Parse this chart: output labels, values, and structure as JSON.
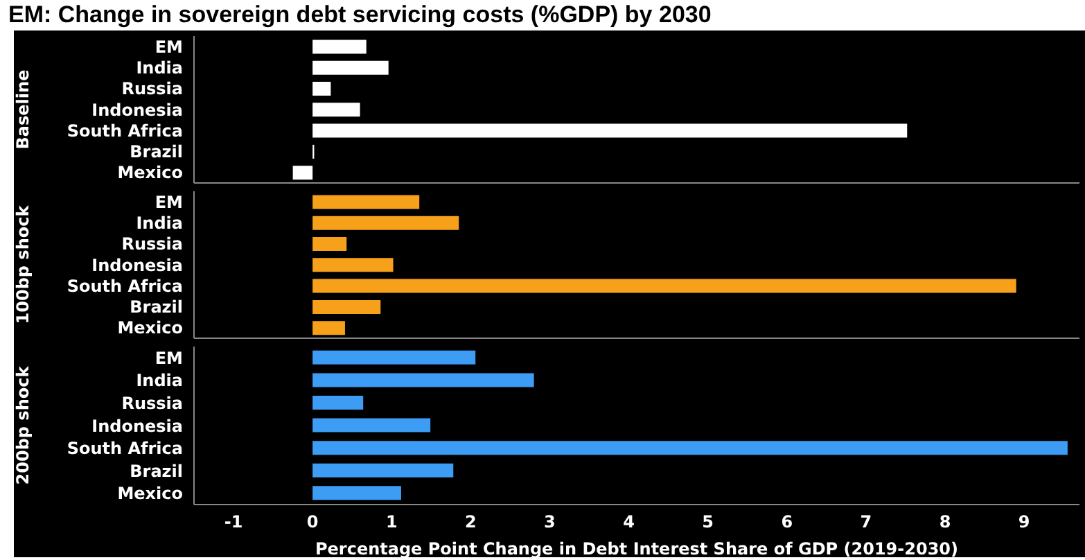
{
  "chart_data": [
    {
      "type": "bar",
      "orientation": "horizontal",
      "title": "EM: Change in sovereign debt servicing costs (%GDP) by 2030",
      "ylabel": "Baseline",
      "categories": [
        "EM",
        "India",
        "Russia",
        "Indonesia",
        "South Africa",
        "Brazil",
        "Mexico"
      ],
      "series": [
        {
          "color": "#ffffff",
          "values": [
            0.68,
            0.96,
            0.23,
            0.6,
            7.52,
            0.02,
            -0.25
          ]
        }
      ],
      "xlim": [
        -1.5,
        9.7
      ],
      "xticks": [
        -1,
        0,
        1,
        2,
        3,
        4,
        5,
        6,
        7,
        8,
        9
      ],
      "tick_labels": "y",
      "grid": false,
      "legend": false
    },
    {
      "type": "bar",
      "orientation": "horizontal",
      "ylabel": "100bp shock",
      "categories": [
        "EM",
        "India",
        "Russia",
        "Indonesia",
        "South Africa",
        "Brazil",
        "Mexico"
      ],
      "series": [
        {
          "color": "#f7a11a",
          "values": [
            1.35,
            1.85,
            0.43,
            1.02,
            8.9,
            0.86,
            0.41
          ]
        }
      ],
      "xlim": [
        -1.5,
        9.7
      ],
      "xticks": [
        -1,
        0,
        1,
        2,
        3,
        4,
        5,
        6,
        7,
        8,
        9
      ],
      "tick_labels": "y",
      "grid": false,
      "legend": false
    },
    {
      "type": "bar",
      "orientation": "horizontal",
      "ylabel": "200bp shock",
      "xlabel": "Percentage Point Change in Debt Interest Share of GDP (2019-2030)",
      "categories": [
        "EM",
        "India",
        "Russia",
        "Indonesia",
        "South Africa",
        "Brazil",
        "Mexico"
      ],
      "series": [
        {
          "color": "#3d9df5",
          "values": [
            2.06,
            2.8,
            0.64,
            1.49,
            9.55,
            1.78,
            1.12
          ]
        }
      ],
      "xlim": [
        -1.5,
        9.7
      ],
      "xticks": [
        -1,
        0,
        1,
        2,
        3,
        4,
        5,
        6,
        7,
        8,
        9
      ],
      "grid": false,
      "legend": false
    }
  ]
}
